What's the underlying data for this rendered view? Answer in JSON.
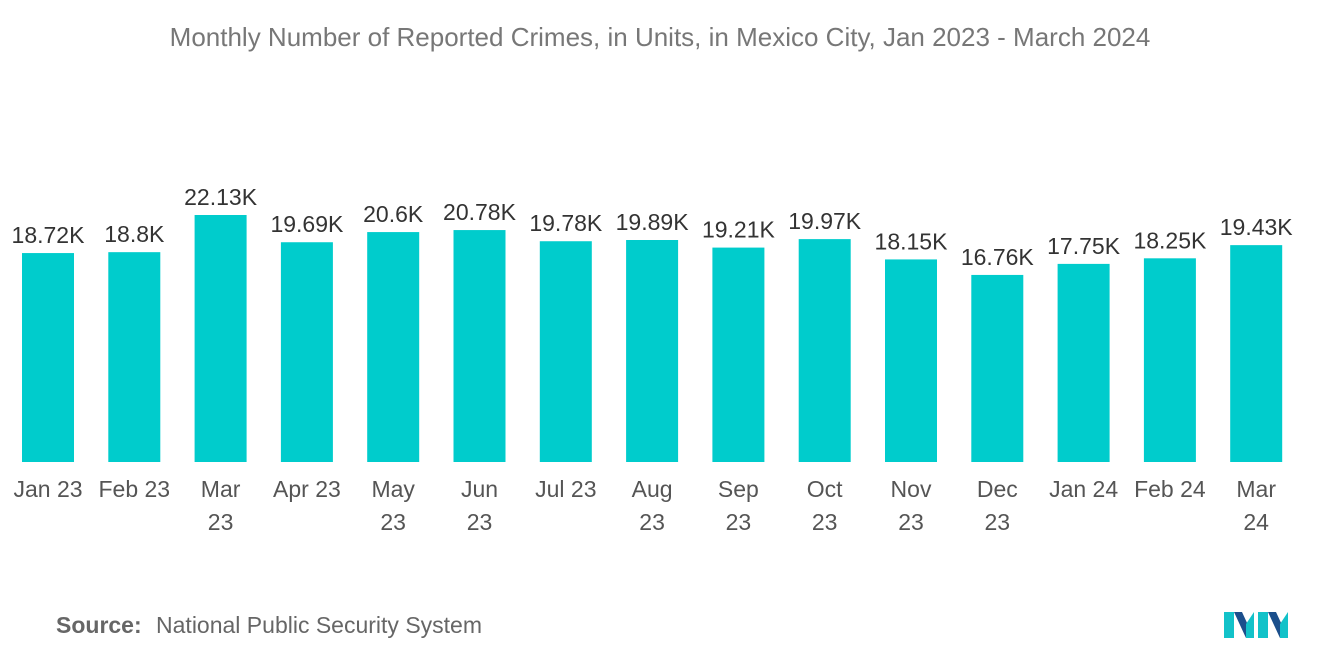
{
  "chart_data": {
    "type": "bar",
    "title": "Monthly Number of Reported Crimes, in Units, in Mexico City, Jan 2023 - March 2024",
    "categories": [
      [
        "Jan 23"
      ],
      [
        "Feb 23"
      ],
      [
        "Mar",
        "23"
      ],
      [
        "Apr 23"
      ],
      [
        "May",
        "23"
      ],
      [
        "Jun",
        "23"
      ],
      [
        "Jul 23"
      ],
      [
        "Aug",
        "23"
      ],
      [
        "Sep",
        "23"
      ],
      [
        "Oct",
        "23"
      ],
      [
        "Nov",
        "23"
      ],
      [
        "Dec",
        "23"
      ],
      [
        "Jan 24"
      ],
      [
        "Feb 24"
      ],
      [
        "Mar",
        "24"
      ]
    ],
    "values": [
      18720,
      18800,
      22130,
      19690,
      20600,
      20780,
      19780,
      19890,
      19210,
      19970,
      18150,
      16760,
      17750,
      18250,
      19430
    ],
    "value_labels": [
      "18.72K",
      "18.8K",
      "22.13K",
      "19.69K",
      "20.6K",
      "20.78K",
      "19.78K",
      "19.89K",
      "19.21K",
      "19.97K",
      "18.15K",
      "16.76K",
      "17.75K",
      "18.25K",
      "19.43K"
    ],
    "ylim": [
      0,
      22130
    ],
    "xlabel": "",
    "ylabel": "",
    "grid": false,
    "bar_color": "#00CCCC"
  },
  "source": {
    "label": "Source:",
    "text": "National Public Security System"
  },
  "logo": {
    "icon": "mordor-logo-icon",
    "colors": [
      "#1B4F8C",
      "#12C2C9"
    ]
  }
}
